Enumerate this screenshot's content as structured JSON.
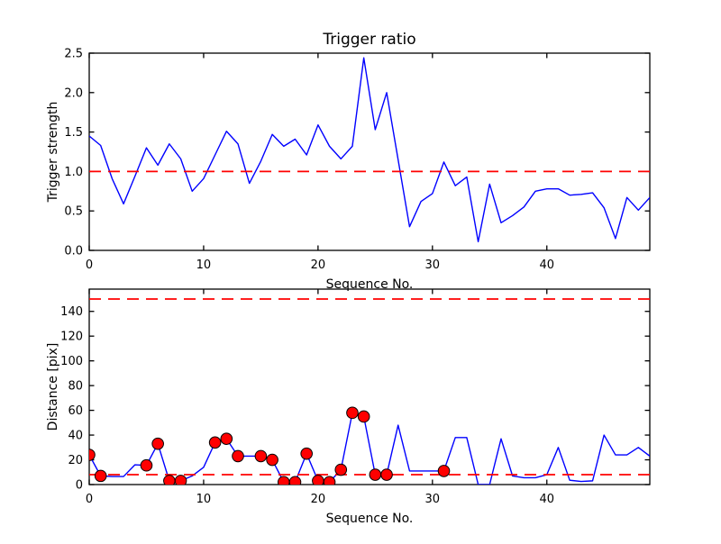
{
  "figure": {
    "background": "#ffffff",
    "colors": {
      "line": "#0000ff",
      "threshold": "#ff0000",
      "marker_fill": "#ff0000",
      "marker_edge": "#000000",
      "axis": "#000000",
      "text": "#000000"
    }
  },
  "chart_data": [
    {
      "type": "line",
      "title": "Trigger ratio",
      "xlabel": "Sequence No.",
      "ylabel": "Trigger strength",
      "xlim": [
        0,
        49
      ],
      "ylim": [
        0,
        2.5
      ],
      "grid": false,
      "legend": null,
      "xticks": [
        0,
        10,
        20,
        30,
        40
      ],
      "xtick_labels": [
        "0",
        "10",
        "20",
        "30",
        "40"
      ],
      "yticks": [
        0,
        0.5,
        1.0,
        1.5,
        2.0,
        2.5
      ],
      "ytick_labels": [
        "0.0",
        "0.5",
        "1.0",
        "1.5",
        "2.0",
        "2.5"
      ],
      "thresholds": [
        1.0
      ],
      "x": [
        0,
        1,
        2,
        3,
        4,
        5,
        6,
        7,
        8,
        9,
        10,
        11,
        12,
        13,
        14,
        15,
        16,
        17,
        18,
        19,
        20,
        21,
        22,
        23,
        24,
        25,
        26,
        27,
        28,
        29,
        30,
        31,
        32,
        33,
        34,
        35,
        36,
        37,
        38,
        39,
        40,
        41,
        42,
        43,
        44,
        45,
        46,
        47,
        48,
        49
      ],
      "y": [
        1.45,
        1.33,
        0.91,
        0.59,
        0.94,
        1.3,
        1.08,
        1.35,
        1.16,
        0.75,
        0.91,
        1.21,
        1.51,
        1.35,
        0.85,
        1.13,
        1.47,
        1.32,
        1.41,
        1.21,
        1.59,
        1.32,
        1.16,
        1.32,
        2.44,
        1.53,
        2.0,
        1.15,
        0.3,
        0.62,
        0.72,
        1.12,
        0.82,
        0.93,
        0.11,
        0.84,
        0.35,
        0.44,
        0.55,
        0.75,
        0.78,
        0.78,
        0.7,
        0.71,
        0.73,
        0.54,
        0.15,
        0.67,
        0.51,
        0.67
      ],
      "marker_indices": []
    },
    {
      "type": "line",
      "title": "",
      "xlabel": "Sequence No.",
      "ylabel": "Distance [pix]",
      "xlim": [
        0,
        49
      ],
      "ylim": [
        0,
        158
      ],
      "grid": false,
      "legend": null,
      "xticks": [
        0,
        10,
        20,
        30,
        40
      ],
      "xtick_labels": [
        "0",
        "10",
        "20",
        "30",
        "40"
      ],
      "yticks": [
        0,
        20,
        40,
        60,
        80,
        100,
        120,
        140
      ],
      "ytick_labels": [
        "0",
        "20",
        "40",
        "60",
        "80",
        "100",
        "120",
        "140"
      ],
      "thresholds": [
        150,
        8
      ],
      "x": [
        0,
        1,
        2,
        3,
        4,
        5,
        6,
        7,
        8,
        9,
        10,
        11,
        12,
        13,
        14,
        15,
        16,
        17,
        18,
        19,
        20,
        21,
        22,
        23,
        24,
        25,
        26,
        27,
        28,
        29,
        30,
        31,
        32,
        33,
        34,
        35,
        36,
        37,
        38,
        39,
        40,
        41,
        42,
        43,
        44,
        45,
        46,
        47,
        48,
        49
      ],
      "y": [
        24,
        7,
        6.5,
        6.5,
        16,
        15.5,
        33,
        3,
        3,
        7,
        14,
        34,
        37,
        23,
        23,
        23,
        20,
        2,
        2,
        25,
        3,
        2,
        12,
        58,
        55,
        8,
        8,
        48,
        11,
        11,
        11,
        11,
        38,
        38,
        0,
        0,
        37,
        7,
        5.5,
        5.5,
        8,
        30,
        3.5,
        2.5,
        3,
        40,
        24,
        24,
        30,
        23
      ],
      "marker_indices": [
        0,
        1,
        5,
        6,
        7,
        8,
        11,
        12,
        13,
        15,
        16,
        17,
        18,
        19,
        20,
        21,
        22,
        23,
        24,
        25,
        26,
        31
      ]
    }
  ]
}
